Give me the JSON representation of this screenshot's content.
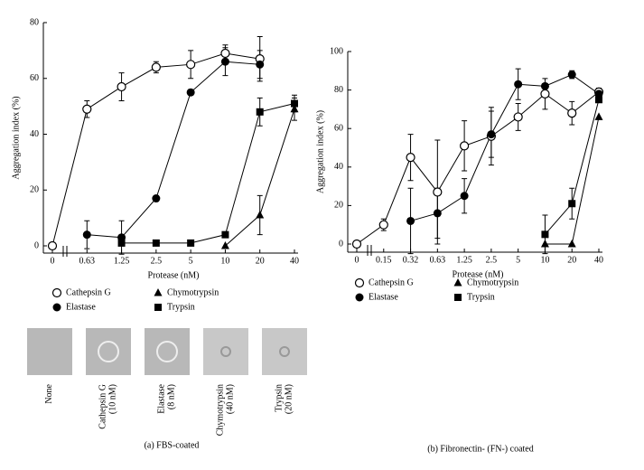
{
  "chart_data": [
    {
      "type": "line",
      "caption": "(a) FBS-coated",
      "ylabel": "Aggregation index (%)",
      "xlabel": "Protease (nM)",
      "categories": [
        "0",
        "0.63",
        "1.25",
        "2.5",
        "5",
        "10",
        "20",
        "40"
      ],
      "ylim": [
        0,
        80
      ],
      "yticks": [
        0,
        20,
        40,
        60,
        80
      ],
      "series": [
        {
          "name": "Cathepsin G",
          "color": "#000000",
          "marker": "open-circle",
          "values": [
            0,
            49,
            57,
            64,
            65,
            69,
            67,
            null
          ],
          "errors": [
            null,
            3,
            5,
            2,
            5,
            3,
            8,
            null
          ]
        },
        {
          "name": "Elastase",
          "color": "#000000",
          "marker": "filled-circle",
          "values": [
            null,
            4,
            3,
            17,
            55,
            66,
            65,
            null
          ],
          "errors": [
            null,
            5,
            6,
            1,
            1,
            5,
            5,
            null
          ]
        },
        {
          "name": "Chymotrypsin",
          "color": "#000000",
          "marker": "triangle",
          "values": [
            null,
            null,
            null,
            null,
            null,
            0,
            11,
            49
          ],
          "errors": [
            null,
            null,
            null,
            null,
            null,
            null,
            7,
            4
          ]
        },
        {
          "name": "Trypsin",
          "color": "#000000",
          "marker": "square",
          "values": [
            null,
            null,
            1,
            1,
            1,
            4,
            48,
            51
          ],
          "errors": [
            null,
            null,
            null,
            null,
            null,
            null,
            5,
            3
          ]
        }
      ]
    },
    {
      "type": "line",
      "caption": "(b) Fibronectin- (FN-) coated",
      "ylabel": "Aggregation index (%)",
      "xlabel": "Protease (nM)",
      "categories": [
        "0",
        "0.15",
        "0.32",
        "0.63",
        "1.25",
        "2.5",
        "5",
        "10",
        "20",
        "40"
      ],
      "ylim": [
        0,
        100
      ],
      "yticks": [
        0,
        20,
        40,
        60,
        80,
        100
      ],
      "series": [
        {
          "name": "Cathepsin G",
          "color": "#000000",
          "marker": "open-circle",
          "values": [
            0,
            10,
            45,
            27,
            51,
            56,
            66,
            78,
            68,
            79
          ],
          "errors": [
            null,
            3,
            12,
            27,
            13,
            15,
            7,
            8,
            6,
            2
          ]
        },
        {
          "name": "Elastase",
          "color": "#000000",
          "marker": "filled-circle",
          "values": [
            null,
            null,
            12,
            16,
            25,
            57,
            83,
            82,
            88,
            78
          ],
          "errors": [
            null,
            null,
            17,
            13,
            9,
            12,
            8,
            null,
            2,
            2
          ]
        },
        {
          "name": "Chymotrypsin",
          "color": "#000000",
          "marker": "triangle",
          "values": [
            null,
            null,
            null,
            null,
            null,
            null,
            null,
            0,
            0,
            66
          ],
          "errors": [
            null,
            null,
            null,
            null,
            null,
            null,
            null,
            null,
            null,
            null
          ]
        },
        {
          "name": "Trypsin",
          "color": "#000000",
          "marker": "square",
          "values": [
            null,
            null,
            null,
            null,
            null,
            null,
            null,
            5,
            21,
            75
          ],
          "errors": [
            null,
            null,
            null,
            null,
            null,
            null,
            null,
            10,
            8,
            null
          ]
        }
      ]
    }
  ],
  "micrographs": [
    {
      "label": [
        "None"
      ]
    },
    {
      "label": [
        "Cathepsin G",
        "(10 nM)"
      ]
    },
    {
      "label": [
        "Elastase",
        "(8 nM)"
      ]
    },
    {
      "label": [
        "Chymotrypsin",
        "(40 nM)"
      ]
    },
    {
      "label": [
        "Trypsin",
        "(20 nM)"
      ]
    }
  ]
}
